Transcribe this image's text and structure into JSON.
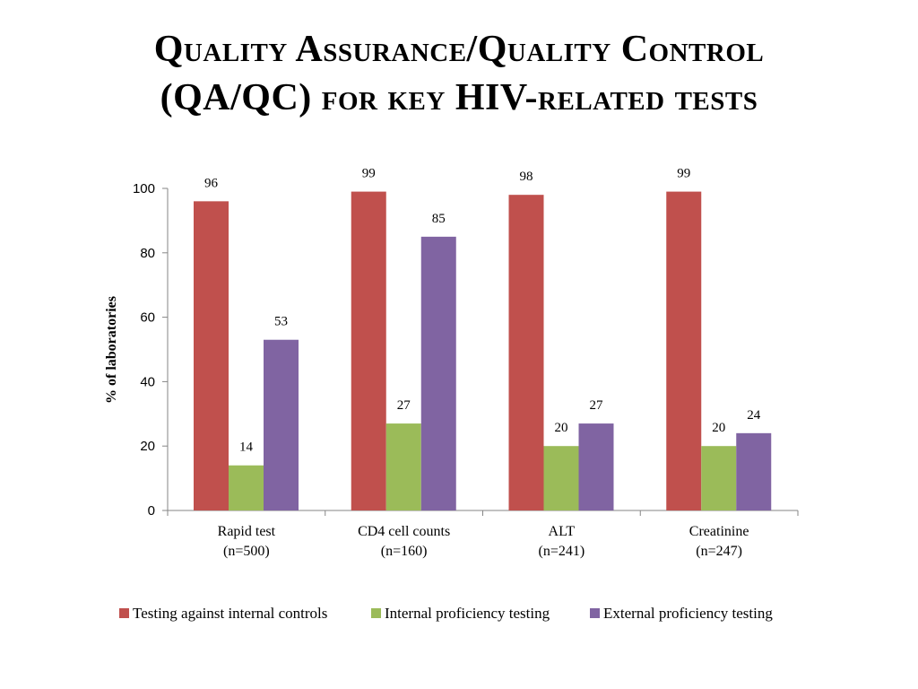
{
  "slide": {
    "title_line1": "Quality Assurance/Quality Control",
    "title_line2": "(QA/QC) for key HIV-related tests"
  },
  "chart_data": {
    "type": "bar",
    "title": "",
    "xlabel": "",
    "ylabel": "% of laboratories",
    "ylim": [
      0,
      100
    ],
    "yticks": [
      0,
      20,
      40,
      60,
      80,
      100
    ],
    "grid": false,
    "legend_position": "bottom",
    "categories": [
      [
        "Rapid test",
        "(n=500)"
      ],
      [
        "CD4 cell counts",
        "(n=160)"
      ],
      [
        "ALT",
        "(n=241)"
      ],
      [
        "Creatinine",
        "(n=247)"
      ]
    ],
    "series": [
      {
        "name": "Testing against internal controls",
        "color": "#c0504d",
        "values": [
          96,
          99,
          98,
          99
        ]
      },
      {
        "name": "Internal proficiency testing",
        "color": "#9bbb59",
        "values": [
          14,
          27,
          20,
          20
        ]
      },
      {
        "name": "External proficiency testing",
        "color": "#8064a2",
        "values": [
          53,
          85,
          27,
          24
        ]
      }
    ],
    "data_labels": [
      [
        "96",
        "99",
        "98",
        "99"
      ],
      [
        "14",
        "27",
        "20",
        "20"
      ],
      [
        "53",
        "85",
        "27",
        "24"
      ]
    ]
  }
}
